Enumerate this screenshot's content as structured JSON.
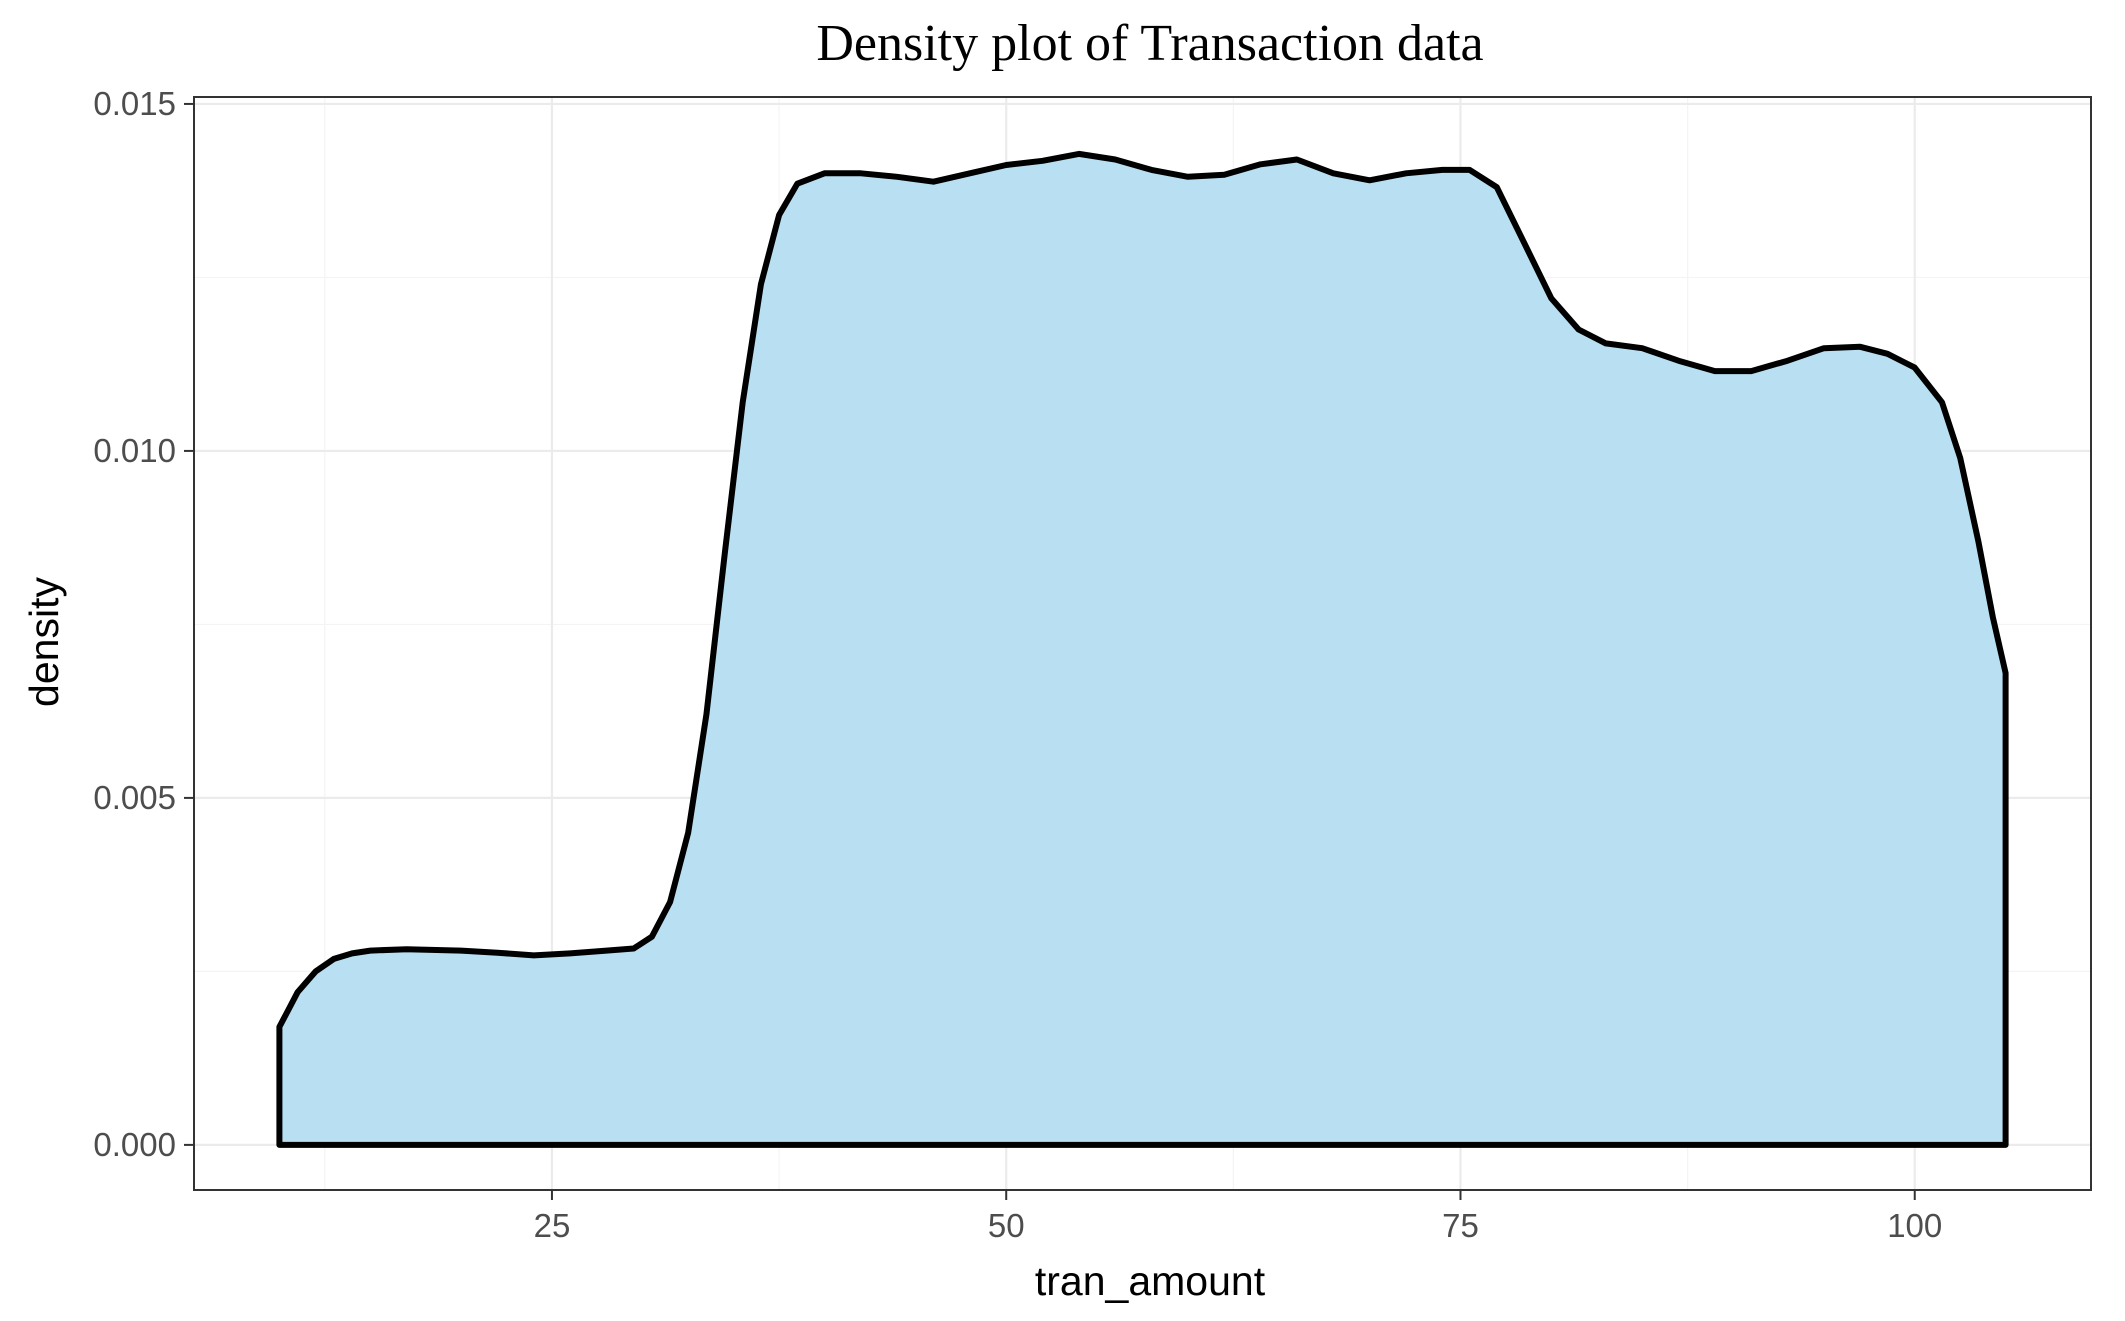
{
  "chart_data": {
    "type": "area",
    "title": "Density plot of Transaction data",
    "xlabel": "tran_amount",
    "ylabel": "density",
    "xlim": [
      5.3,
      109.7
    ],
    "ylim": [
      -0.00065,
      0.0151
    ],
    "x_ticks": [
      25,
      50,
      75,
      100
    ],
    "x_tick_labels": [
      "25",
      "50",
      "75",
      "100"
    ],
    "y_ticks": [
      0.0,
      0.005,
      0.01,
      0.015
    ],
    "y_tick_labels": [
      "0.000",
      "0.005",
      "0.010",
      "0.015"
    ],
    "grid": true,
    "legend": "none",
    "fill_color": "#b8e0f2",
    "line_color": "#000000",
    "series": [
      {
        "x": [
          10,
          10.5,
          11,
          12,
          13,
          14,
          15,
          17,
          20,
          22,
          24,
          26,
          28,
          29.5,
          30.5,
          31.5,
          32.5,
          33.5,
          34.5,
          35.5,
          36.5,
          37.5,
          38.5,
          40,
          42,
          44,
          46,
          48,
          50,
          52,
          54,
          56,
          58,
          60,
          62,
          64,
          66,
          68,
          70,
          72,
          74,
          75.5,
          77,
          78.5,
          80,
          81.5,
          83,
          85,
          87,
          89,
          91,
          93,
          95,
          97,
          98.5,
          100,
          101.5,
          102.5,
          103.5,
          104.3,
          105
        ],
        "y": [
          0.0017,
          0.00195,
          0.0022,
          0.0025,
          0.00268,
          0.00276,
          0.0028,
          0.00282,
          0.0028,
          0.00277,
          0.00273,
          0.00276,
          0.0028,
          0.00283,
          0.003,
          0.0035,
          0.0045,
          0.0062,
          0.0085,
          0.0107,
          0.0124,
          0.0134,
          0.01385,
          0.014,
          0.014,
          0.01395,
          0.01388,
          0.014,
          0.01412,
          0.01418,
          0.01428,
          0.0142,
          0.01405,
          0.01395,
          0.01398,
          0.01413,
          0.0142,
          0.014,
          0.0139,
          0.014,
          0.01405,
          0.01405,
          0.0138,
          0.013,
          0.0122,
          0.01175,
          0.01155,
          0.01148,
          0.0113,
          0.01115,
          0.01115,
          0.0113,
          0.01148,
          0.0115,
          0.0114,
          0.0112,
          0.0107,
          0.0099,
          0.0087,
          0.0076,
          0.0068
        ]
      }
    ]
  }
}
